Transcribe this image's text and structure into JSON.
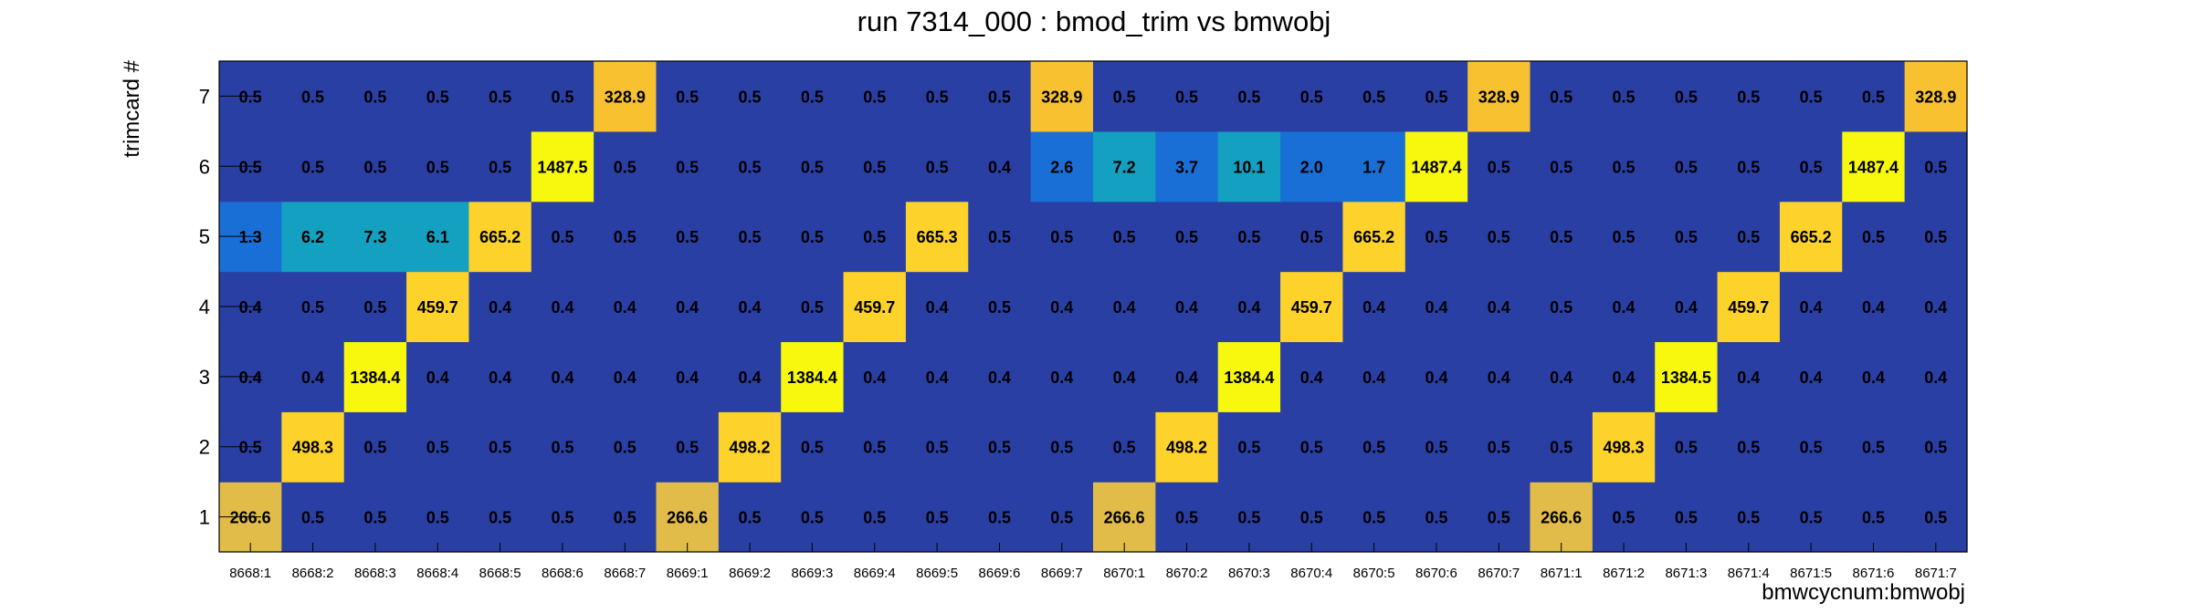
{
  "chart_data": {
    "type": "heatmap",
    "title": "run 7314_000 : bmod_trim vs bmwobj",
    "xlabel": "bmwcycnum:bmwobj",
    "ylabel": "trimcard #",
    "categories": [
      "8668:1",
      "8668:2",
      "8668:3",
      "8668:4",
      "8668:5",
      "8668:6",
      "8668:7",
      "8669:1",
      "8669:2",
      "8669:3",
      "8669:4",
      "8669:5",
      "8669:6",
      "8669:7",
      "8670:1",
      "8670:2",
      "8670:3",
      "8670:4",
      "8670:5",
      "8670:6",
      "8670:7",
      "8671:1",
      "8671:2",
      "8671:3",
      "8671:4",
      "8671:5",
      "8671:6",
      "8671:7"
    ],
    "y_categories": [
      "1",
      "2",
      "3",
      "4",
      "5",
      "6",
      "7"
    ],
    "series": [
      {
        "values": [
          266.6,
          0.5,
          0.5,
          0.5,
          0.5,
          0.5,
          0.5,
          266.6,
          0.5,
          0.5,
          0.5,
          0.5,
          0.5,
          0.5,
          266.6,
          0.5,
          0.5,
          0.5,
          0.5,
          0.5,
          0.5,
          266.6,
          0.5,
          0.5,
          0.5,
          0.5,
          0.5,
          0.5
        ]
      },
      {
        "values": [
          0.5,
          498.3,
          0.5,
          0.5,
          0.5,
          0.5,
          0.5,
          0.5,
          498.2,
          0.5,
          0.5,
          0.5,
          0.5,
          0.5,
          0.5,
          498.2,
          0.5,
          0.5,
          0.5,
          0.5,
          0.5,
          0.5,
          498.3,
          0.5,
          0.5,
          0.5,
          0.5,
          0.5
        ]
      },
      {
        "values": [
          0.4,
          0.4,
          1384.4,
          0.4,
          0.4,
          0.4,
          0.4,
          0.4,
          0.4,
          1384.4,
          0.4,
          0.4,
          0.4,
          0.4,
          0.4,
          0.4,
          1384.4,
          0.4,
          0.4,
          0.4,
          0.4,
          0.4,
          0.4,
          1384.5,
          0.4,
          0.4,
          0.4,
          0.4
        ]
      },
      {
        "values": [
          0.4,
          0.5,
          0.5,
          459.7,
          0.4,
          0.4,
          0.4,
          0.4,
          0.4,
          0.5,
          459.7,
          0.4,
          0.5,
          0.4,
          0.4,
          0.4,
          0.4,
          459.7,
          0.4,
          0.4,
          0.4,
          0.5,
          0.4,
          0.4,
          459.7,
          0.4,
          0.4,
          0.4
        ]
      },
      {
        "values": [
          1.3,
          6.2,
          7.3,
          6.1,
          665.2,
          0.5,
          0.5,
          0.5,
          0.5,
          0.5,
          0.5,
          665.3,
          0.5,
          0.5,
          0.5,
          0.5,
          0.5,
          0.5,
          665.2,
          0.5,
          0.5,
          0.5,
          0.5,
          0.5,
          0.5,
          665.2,
          0.5,
          0.5
        ]
      },
      {
        "values": [
          0.5,
          0.5,
          0.5,
          0.5,
          0.5,
          1487.5,
          0.5,
          0.5,
          0.5,
          0.5,
          0.5,
          0.5,
          0.4,
          2.6,
          7.2,
          3.7,
          10.1,
          2.0,
          1.7,
          1487.4,
          0.5,
          0.5,
          0.5,
          0.5,
          0.5,
          0.5,
          1487.4,
          0.5
        ]
      },
      {
        "values": [
          0.5,
          0.5,
          0.5,
          0.5,
          0.5,
          0.5,
          328.9,
          0.5,
          0.5,
          0.5,
          0.5,
          0.5,
          0.5,
          328.9,
          0.5,
          0.5,
          0.5,
          0.5,
          0.5,
          0.5,
          328.9,
          0.5,
          0.5,
          0.5,
          0.5,
          0.5,
          0.5,
          328.9
        ]
      }
    ],
    "colors": {
      "low": "#2a3fa4",
      "blue": "#1a6fd6",
      "cyan": "#14a0c0",
      "mid_tan": "#e2bc48",
      "orange": "#f7c130",
      "gold": "#fdd22a",
      "yellow": "#f8f80e"
    }
  }
}
